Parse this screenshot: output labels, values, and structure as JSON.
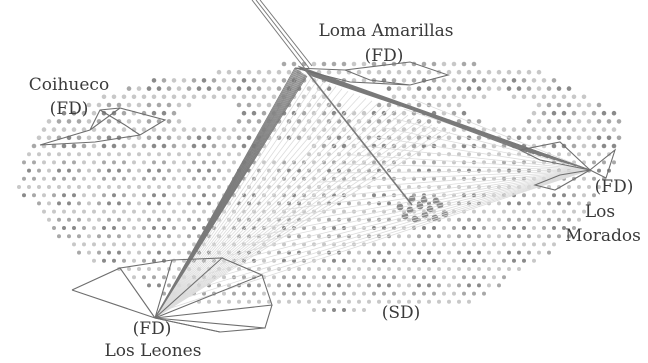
{
  "labels": {
    "loma_amarillas_name": "Loma Amarillas",
    "loma_amarillas_type": "(FD)",
    "coihueco_name": "Coihueco",
    "coihueco_type": "(FD)",
    "los_morados_type": "(FD)",
    "los_morados_name_1": "Los",
    "los_morados_name_2": "Morados",
    "los_leones_type": "(FD)",
    "los_leones_name": "Los Leones",
    "surface_detector": "(SD)"
  },
  "colors": {
    "background": "#ffffff",
    "station_light": "#c8c8c8",
    "station_mid": "#a8a8a8",
    "station_dark": "#8a8a8a",
    "track_light": "#dcdcdc",
    "track_dark": "#7a7a7a",
    "fd_outline": "#6e6e6e",
    "label_text": "#3a3a3a"
  }
}
